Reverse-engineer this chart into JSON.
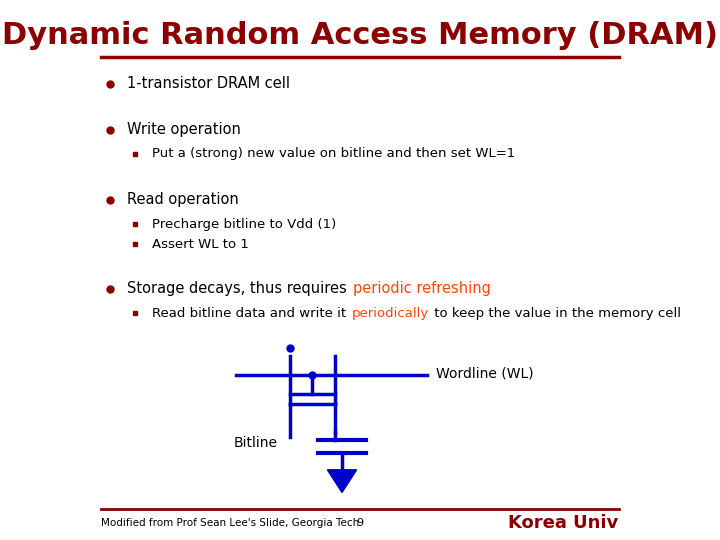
{
  "title": "Dynamic Random Access Memory (DRAM)",
  "title_color": "#8B0000",
  "title_fontsize": 22,
  "background_color": "#FFFFFF",
  "bullet_color": "#8B0000",
  "text_color": "#000000",
  "sub_bullet_color": "#8B0000",
  "highlight_color": "#FF4500",
  "circuit_color": "#0000CC",
  "footer_line_color": "#8B0000",
  "footer_text": "Modified from Prof Sean Lee's Slide, Georgia Tech",
  "footer_page": "9",
  "footer_right": "Korea Univ"
}
